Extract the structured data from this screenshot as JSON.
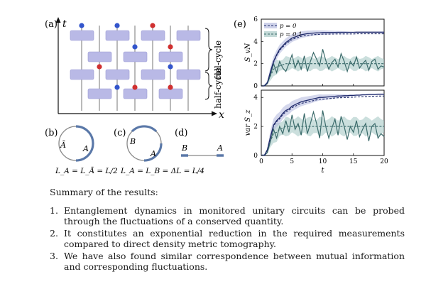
{
  "panels": {
    "a": {
      "tag": "(a)",
      "t_axis": "t",
      "x_axis": "x",
      "brace_full": "full-cycle",
      "brace_half": "half-cycle"
    },
    "b": {
      "tag": "(b)",
      "label_abar": "Ā",
      "label_a": "A",
      "caption": "L_A = L_Ā = L/2"
    },
    "c": {
      "tag": "(c)",
      "label_b": "B",
      "label_a": "A",
      "caption": "L_A = L_B = ΔL = L/4"
    },
    "d": {
      "tag": "(d)",
      "label_b": "B",
      "label_a": "A"
    },
    "e": {
      "tag": "(e)"
    }
  },
  "colors": {
    "gate": "#b9b9e6",
    "gate_edge": "#9a9ad4",
    "measure_blue": "#3355cc",
    "measure_red": "#d03030",
    "p0": "#1f2a6b",
    "p01": "#3b6b6b",
    "band_p0": "#b8bde0",
    "band_p01": "#a9c9c6"
  },
  "chart_data": [
    {
      "type": "line",
      "ylabel": "S_vN",
      "xlabel": "",
      "xlim": [
        0,
        20
      ],
      "ylim": [
        0,
        6
      ],
      "xticks": [
        0,
        5,
        10,
        15,
        20
      ],
      "yticks": [
        0,
        2,
        4,
        6
      ],
      "legend_position": "top-left",
      "x": [
        0,
        0.5,
        1,
        1.5,
        2,
        2.5,
        3,
        3.5,
        4,
        4.5,
        5,
        5.5,
        6,
        6.5,
        7,
        7.5,
        8,
        8.5,
        9,
        9.5,
        10,
        10.5,
        11,
        11.5,
        12,
        12.5,
        13,
        13.5,
        14,
        14.5,
        15,
        15.5,
        16,
        16.5,
        17,
        17.5,
        18,
        18.5,
        19,
        19.5,
        20
      ],
      "series": [
        {
          "name": "p = 0",
          "values": [
            0,
            0,
            0.3,
            1.3,
            2.2,
            2.8,
            3.3,
            3.6,
            3.9,
            4.1,
            4.3,
            4.4,
            4.5,
            4.6,
            4.65,
            4.7,
            4.72,
            4.75,
            4.77,
            4.78,
            4.8,
            4.8,
            4.8,
            4.81,
            4.81,
            4.82,
            4.82,
            4.82,
            4.82,
            4.82,
            4.82,
            4.83,
            4.83,
            4.83,
            4.83,
            4.83,
            4.83,
            4.83,
            4.83,
            4.83,
            4.83
          ]
        },
        {
          "name": "p = 0.1",
          "values": [
            0,
            0,
            0.3,
            0.9,
            1.5,
            1.7,
            1.8,
            1.9,
            2.0,
            2.0,
            2.0,
            2.0,
            2.0,
            2.0,
            2.0,
            2.0,
            2.0,
            2.0,
            2.0,
            2.0,
            2.0,
            2.0,
            2.0,
            2.0,
            2.0,
            2.0,
            2.0,
            2.0,
            2.0,
            2.0,
            2.0,
            2.0,
            2.0,
            2.0,
            2.0,
            2.0,
            2.0,
            2.0,
            2.0,
            2.0,
            2.0
          ]
        },
        {
          "name": "",
          "values": [
            0,
            0,
            0.2,
            1.0,
            2.0,
            1.2,
            2.2,
            1.6,
            1.3,
            2.0,
            2.8,
            1.6,
            2.3,
            1.5,
            2.7,
            1.3,
            2.2,
            3.0,
            2.4,
            1.8,
            3.3,
            2.3,
            1.5,
            2.1,
            2.4,
            1.7,
            2.9,
            2.2,
            1.3,
            2.2,
            1.8,
            2.6,
            1.6,
            2.0,
            2.3,
            1.4,
            2.2,
            2.4,
            1.5,
            1.8,
            1.7
          ]
        }
      ]
    },
    {
      "type": "line",
      "ylabel": "var S_z",
      "xlabel": "t",
      "xlim": [
        0,
        20
      ],
      "ylim": [
        0,
        4.5
      ],
      "xticks": [
        0,
        5,
        10,
        15,
        20
      ],
      "yticks": [
        0,
        2,
        4
      ],
      "x": [
        0,
        0.5,
        1,
        1.5,
        2,
        2.5,
        3,
        3.5,
        4,
        4.5,
        5,
        5.5,
        6,
        6.5,
        7,
        7.5,
        8,
        8.5,
        9,
        9.5,
        10,
        10.5,
        11,
        11.5,
        12,
        12.5,
        13,
        13.5,
        14,
        14.5,
        15,
        15.5,
        16,
        16.5,
        17,
        17.5,
        18,
        18.5,
        19,
        19.5,
        20
      ],
      "series": [
        {
          "name": "p = 0",
          "values": [
            0,
            0,
            0.4,
            1.3,
            2.1,
            2.4,
            2.6,
            2.9,
            3.1,
            3.2,
            3.4,
            3.5,
            3.6,
            3.7,
            3.75,
            3.8,
            3.85,
            3.9,
            3.95,
            4.0,
            4.0,
            4.02,
            4.04,
            4.06,
            4.08,
            4.1,
            4.1,
            4.12,
            4.12,
            4.14,
            4.14,
            4.16,
            4.16,
            4.18,
            4.18,
            4.2,
            4.2,
            4.2,
            4.22,
            4.22,
            4.22
          ]
        },
        {
          "name": "p = 0.1",
          "values": [
            0,
            0,
            0.3,
            1.0,
            1.5,
            1.6,
            1.8,
            1.9,
            2.0,
            2.0,
            2.0,
            2.0,
            2.0,
            2.0,
            2.0,
            2.0,
            2.0,
            2.0,
            2.0,
            2.0,
            2.0,
            2.0,
            2.0,
            2.0,
            2.0,
            2.0,
            2.0,
            2.0,
            2.0,
            2.0,
            2.0,
            2.0,
            2.0,
            2.0,
            2.0,
            2.0,
            2.0,
            2.0,
            2.0,
            2.0,
            2.0
          ]
        },
        {
          "name": "",
          "values": [
            0,
            0,
            0.2,
            1.0,
            1.8,
            1.2,
            2.0,
            1.5,
            2.4,
            1.6,
            2.8,
            1.8,
            2.2,
            1.4,
            2.9,
            1.5,
            2.2,
            3.0,
            2.2,
            1.2,
            3.1,
            2.0,
            1.2,
            1.9,
            2.5,
            1.4,
            2.7,
            2.0,
            1.1,
            2.0,
            1.6,
            2.4,
            1.3,
            1.8,
            2.2,
            1.0,
            2.0,
            2.2,
            1.2,
            1.5,
            1.3
          ]
        }
      ]
    }
  ],
  "summary": {
    "title": "Summary of the results:",
    "items": [
      {
        "num": "1.",
        "text": "Entanglement dynamics in monitored unitary circuits can be probed through the fluctuations of a conserved quantity."
      },
      {
        "num": "2.",
        "text": "It constitutes an exponential reduction in the required measurements compared to direct density metric tomography."
      },
      {
        "num": "3.",
        "text": "We have also found similar correspondence between mutual information and corresponding fluctuations."
      }
    ]
  }
}
